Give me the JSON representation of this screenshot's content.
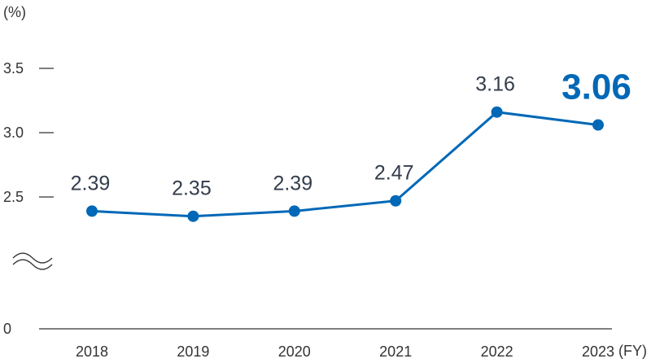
{
  "chart_data": {
    "type": "line",
    "categories": [
      "2018",
      "2019",
      "2020",
      "2021",
      "2022",
      "2023"
    ],
    "values": [
      2.39,
      2.35,
      2.39,
      2.47,
      3.16,
      3.06
    ],
    "value_labels": [
      "2.39",
      "2.35",
      "2.39",
      "2.47",
      "3.16",
      "3.06"
    ],
    "highlighted_category": "2023",
    "ylabel": "(%)",
    "xlabel": "(FY)",
    "y_ticks": [
      "3.5",
      "3.0",
      "2.5",
      "0"
    ],
    "y_tick_values": [
      3.5,
      3.0,
      2.5,
      0
    ],
    "ylim": [
      0,
      3.5
    ],
    "axis_break": "between 0 and 2.5",
    "grid": false,
    "line_color": "#0068b7",
    "highlight_color": "#0068b7",
    "text_color": "#333d4d"
  }
}
